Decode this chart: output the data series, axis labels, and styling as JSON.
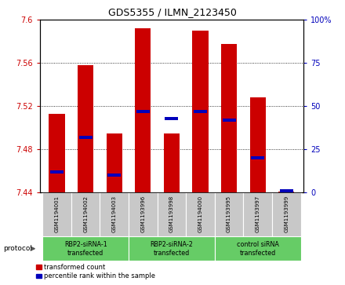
{
  "title": "GDS5355 / ILMN_2123450",
  "samples": [
    "GSM1194001",
    "GSM1194002",
    "GSM1194003",
    "GSM1193996",
    "GSM1193998",
    "GSM1194000",
    "GSM1193995",
    "GSM1193997",
    "GSM1193999"
  ],
  "red_values": [
    7.513,
    7.558,
    7.495,
    7.592,
    7.495,
    7.59,
    7.578,
    7.528,
    7.441
  ],
  "blue_values": [
    12,
    32,
    10,
    47,
    43,
    47,
    42,
    20,
    1
  ],
  "ylim_left": [
    7.44,
    7.6
  ],
  "ylim_right": [
    0,
    100
  ],
  "yticks_left": [
    7.44,
    7.48,
    7.52,
    7.56,
    7.6
  ],
  "yticks_right": [
    0,
    25,
    50,
    75,
    100
  ],
  "groups": [
    {
      "label": "RBP2-siRNA-1\ntransfected",
      "start": 0,
      "end": 3,
      "color": "#66CC66"
    },
    {
      "label": "RBP2-siRNA-2\ntransfected",
      "start": 3,
      "end": 6,
      "color": "#66CC66"
    },
    {
      "label": "control siRNA\ntransfected",
      "start": 6,
      "end": 9,
      "color": "#66CC66"
    }
  ],
  "bar_width": 0.55,
  "bar_color_red": "#CC0000",
  "bar_color_blue": "#0000BB",
  "baseline": 7.44,
  "protocol_label": "protocol",
  "legend_red": "transformed count",
  "legend_blue": "percentile rank within the sample",
  "tick_color_left": "#CC0000",
  "tick_color_right": "#0000BB",
  "sample_area_color": "#C8C8C8",
  "bg_color": "#FFFFFF"
}
